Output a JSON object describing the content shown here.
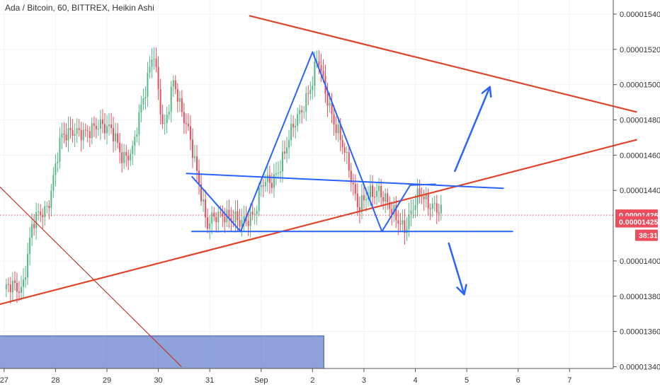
{
  "chart_data": {
    "type": "candlestick",
    "title": "Ada / Bitcoin, 60, BITTREX, Heikin Ashi",
    "x_ticks": [
      "27",
      "28",
      "29",
      "30",
      "31",
      "Sep",
      "2",
      "3",
      "4",
      "5",
      "6",
      "7"
    ],
    "y_ticks": [
      "0.00001540",
      "0.00001520",
      "0.00001500",
      "0.00001480",
      "0.00001460",
      "0.00001440",
      "0.00001400",
      "0.00001380",
      "0.00001360",
      "0.00001340"
    ],
    "ylim": [
      1.339e-05,
      1.548e-05
    ],
    "xlim": [
      -0.08,
      11.85
    ],
    "last_price": "0.00001426",
    "price_tag_2": "0.00001425",
    "countdown": "38:31",
    "colors": {
      "up": "#53b987",
      "down": "#eb4d5c",
      "trendline": "#e0442c",
      "pattern": "#2962ff",
      "box": "#5470c6"
    },
    "path_points": [
      [
        0,
        1384
      ],
      [
        0.35,
        1385
      ],
      [
        0.55,
        1420
      ],
      [
        0.85,
        1432
      ],
      [
        1.1,
        1468
      ],
      [
        1.35,
        1476
      ],
      [
        1.6,
        1470
      ],
      [
        1.85,
        1480
      ],
      [
        2.1,
        1472
      ],
      [
        2.3,
        1460
      ],
      [
        2.5,
        1462
      ],
      [
        2.75,
        1498
      ],
      [
        2.9,
        1522
      ],
      [
        3.1,
        1470
      ],
      [
        3.3,
        1505
      ],
      [
        3.45,
        1485
      ],
      [
        3.6,
        1470
      ],
      [
        3.8,
        1445
      ],
      [
        3.95,
        1420
      ],
      [
        4.3,
        1428
      ],
      [
        4.6,
        1420
      ],
      [
        4.9,
        1430
      ],
      [
        5.0,
        1442
      ],
      [
        5.2,
        1445
      ],
      [
        5.45,
        1460
      ],
      [
        5.7,
        1482
      ],
      [
        6.0,
        1500
      ],
      [
        6.1,
        1515
      ],
      [
        6.25,
        1498
      ],
      [
        6.45,
        1475
      ],
      [
        6.7,
        1455
      ],
      [
        6.9,
        1430
      ],
      [
        7.15,
        1438
      ],
      [
        7.3,
        1442
      ],
      [
        7.55,
        1426
      ],
      [
        7.8,
        1420
      ],
      [
        8.1,
        1438
      ],
      [
        8.35,
        1432
      ],
      [
        8.5,
        1426
      ]
    ],
    "annotations": {
      "trend_upper": [
        [
          4.78,
          1539
        ],
        [
          12.3,
          1484.5
        ]
      ],
      "trend_lower": [
        [
          -0.22,
          1374.4
        ],
        [
          12.3,
          1468.7
        ]
      ],
      "trend_diagonal": [
        [
          -0.22,
          1446
        ],
        [
          3.45,
          1340
        ]
      ],
      "neckline": [
        [
          3.55,
          1449.6
        ],
        [
          9.71,
          1441.2
        ]
      ],
      "support": [
        [
          3.65,
          1416.7
        ],
        [
          9.89,
          1416.7
        ]
      ],
      "zigzag": [
        [
          3.65,
          1448
        ],
        [
          4.6,
          1416.7
        ],
        [
          6.0,
          1518.5
        ],
        [
          7.35,
          1416.7
        ],
        [
          7.9,
          1443
        ],
        [
          8.4,
          1443.5
        ]
      ],
      "arrow_up": [
        [
          8.77,
          1451
        ],
        [
          9.45,
          1498.7
        ]
      ],
      "arrow_down": [
        [
          8.65,
          1410
        ],
        [
          8.95,
          1381
        ]
      ],
      "box_range": [
        [
          -0.22,
          1357.5
        ],
        [
          6.22,
          1339
        ]
      ]
    }
  }
}
